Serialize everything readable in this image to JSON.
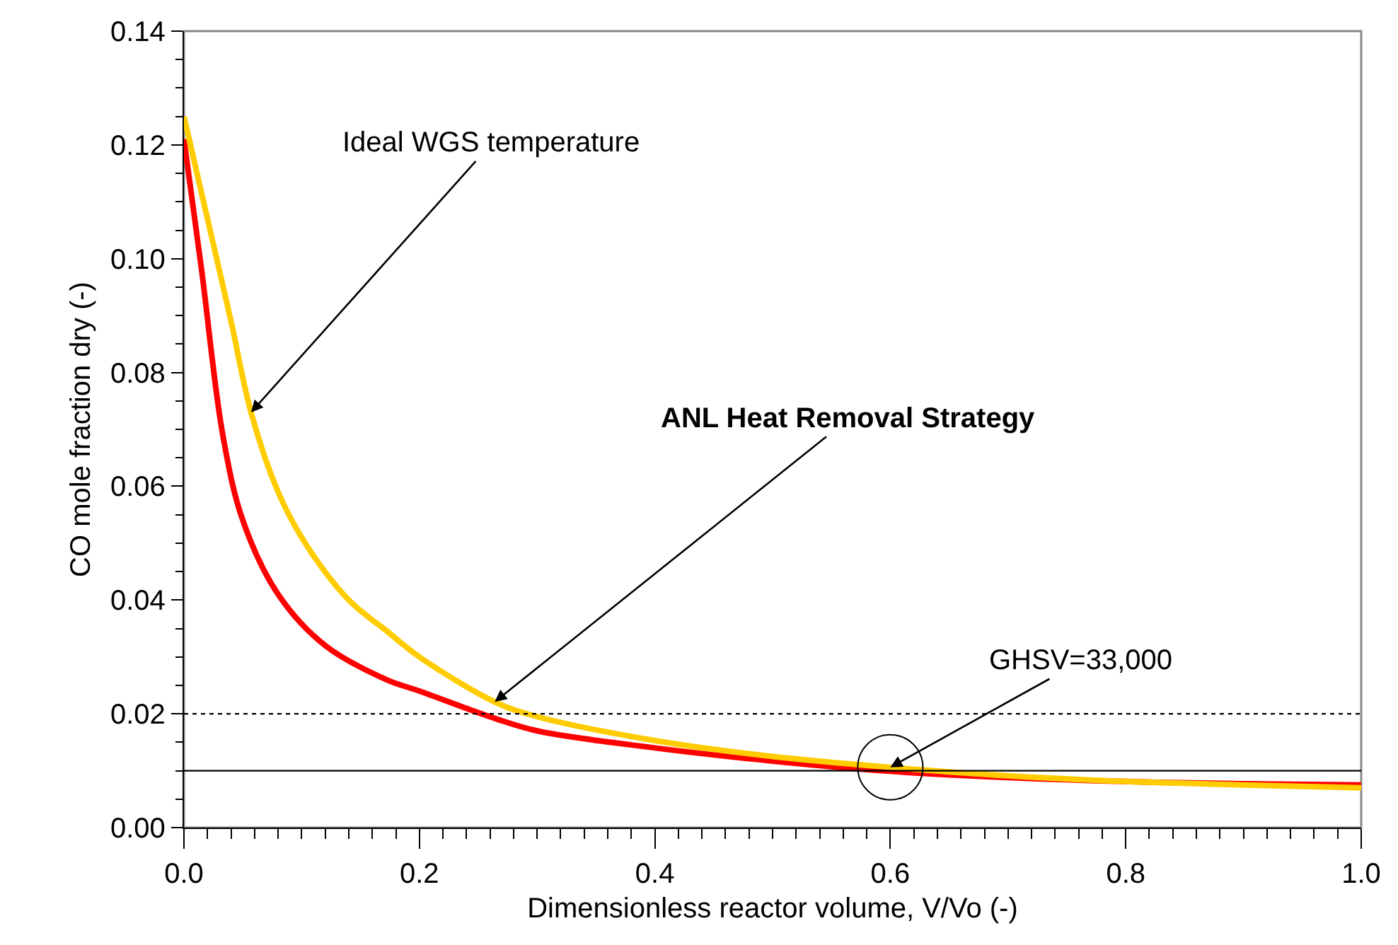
{
  "chart_data": {
    "type": "line",
    "xlabel": "Dimensionless reactor volume, V/Vo (-)",
    "ylabel": "CO mole fraction dry (-)",
    "xlim": [
      0,
      1
    ],
    "xticks": [
      {
        "value": 0,
        "label": "0.0"
      },
      0.2,
      0.4,
      0.6,
      0.8,
      {
        "value": 1,
        "label": "1.0"
      }
    ],
    "ylim": [
      0,
      0.14
    ],
    "yticks": [
      {
        "value": 0,
        "label": "0.00"
      },
      0.02,
      0.04,
      0.06,
      0.08,
      {
        "value": 0.1,
        "label": "0.10"
      },
      0.12,
      0.14
    ],
    "grid": false,
    "marker": "none",
    "line_style": "solid",
    "series": [
      {
        "color": "#ff0000",
        "x": [
          0,
          0.015,
          0.033,
          0.05,
          0.08,
          0.12,
          0.172,
          0.2,
          0.264,
          0.3,
          0.4,
          0.5,
          0.6,
          0.7,
          0.8,
          0.9,
          1.0
        ],
        "values": [
          0.121,
          0.098,
          0.069,
          0.054,
          0.041,
          0.032,
          0.026,
          0.024,
          0.0192,
          0.017,
          0.014,
          0.0117,
          0.0099,
          0.0088,
          0.0081,
          0.0077,
          0.0075
        ]
      },
      {
        "color": "#ffcc00",
        "x": [
          0,
          0.02,
          0.04,
          0.057,
          0.08,
          0.103,
          0.14,
          0.172,
          0.2,
          0.264,
          0.3,
          0.4,
          0.5,
          0.6,
          0.7,
          0.8,
          0.9,
          1.0
        ],
        "values": [
          0.125,
          0.107,
          0.089,
          0.073,
          0.059,
          0.05,
          0.04,
          0.0346,
          0.03,
          0.0221,
          0.0195,
          0.0153,
          0.0125,
          0.0106,
          0.0091,
          0.0081,
          0.0075,
          0.007
        ]
      }
    ],
    "ref_lines": [
      {
        "axis": "y",
        "value": 0.02,
        "color": "#000000",
        "line_style": "dotted"
      },
      {
        "axis": "y",
        "value": 0.01,
        "color": "#000000",
        "line_style": "solid"
      }
    ],
    "annotations": [
      {
        "text": "Ideal WGS temperature",
        "x": 0.057,
        "y": 0.073
      },
      {
        "text": "ANL Heat Removal Strategy",
        "x": 0.264,
        "y": 0.0221
      },
      {
        "text": "GHSV=33,000",
        "x": 0.6,
        "y": 0.0106
      }
    ]
  }
}
